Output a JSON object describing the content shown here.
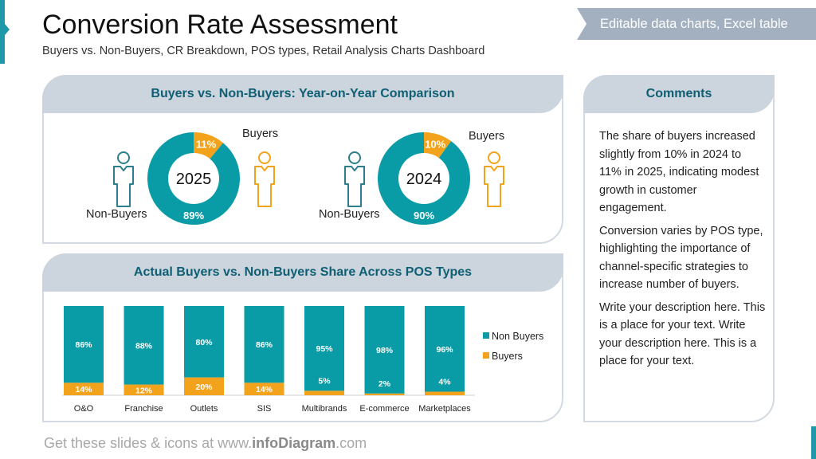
{
  "header": {
    "title": "Conversion Rate Assessment",
    "subtitle": "Buyers vs. Non-Buyers, CR Breakdown, POS types, Retail Analysis Charts Dashboard",
    "ribbon": "Editable data charts, Excel table"
  },
  "colors": {
    "non_buyers": "#0a9ca6",
    "buyers": "#f2a31b",
    "panel_header": "#ccd4dd",
    "header_text": "#0e5f73"
  },
  "panels": {
    "yoy_title": "Buyers vs. Non-Buyers: Year-on-Year Comparison",
    "pos_title": "Actual Buyers vs. Non-Buyers Share Across POS Types",
    "comments_title": "Comments"
  },
  "chart_data": [
    {
      "type": "pie",
      "variant": "donut",
      "center_label": "2025",
      "categories": [
        "Buyers",
        "Non-Buyers"
      ],
      "values": [
        11,
        89
      ],
      "data_labels": [
        "11%",
        "89%"
      ],
      "labels": {
        "buyers": "Buyers",
        "non_buyers": "Non-Buyers"
      }
    },
    {
      "type": "pie",
      "variant": "donut",
      "center_label": "2024",
      "categories": [
        "Buyers",
        "Non-Buyers"
      ],
      "values": [
        10,
        90
      ],
      "data_labels": [
        "10%",
        "90%"
      ],
      "labels": {
        "buyers": "Buyers",
        "non_buyers": "Non-Buyers"
      }
    },
    {
      "type": "bar",
      "stacked": true,
      "percent": true,
      "categories": [
        "O&O",
        "Franchise",
        "Outlets",
        "SIS",
        "Multibrands",
        "E-commerce",
        "Marketplaces"
      ],
      "series": [
        {
          "name": "Buyers",
          "values": [
            14,
            12,
            20,
            14,
            5,
            2,
            4
          ]
        },
        {
          "name": "Non Buyers",
          "values": [
            86,
            88,
            80,
            86,
            95,
            98,
            96
          ]
        }
      ],
      "ylim": [
        0,
        100
      ],
      "grid": false,
      "legend": "right",
      "legend_entries": [
        "Non Buyers",
        "Buyers"
      ]
    }
  ],
  "comments": [
    "The share of buyers increased slightly from 10% in 2024 to 11% in 2025, indicating modest growth in customer engagement.",
    "Conversion varies by POS type, highlighting the importance of channel-specific strategies to increase number of buyers.",
    "Write your description here. This is a place for your text. Write your description here. This is a place for your text."
  ],
  "footer": {
    "prefix": "Get these slides & icons at www.",
    "brand": "infoDiagram",
    "suffix": ".com"
  }
}
